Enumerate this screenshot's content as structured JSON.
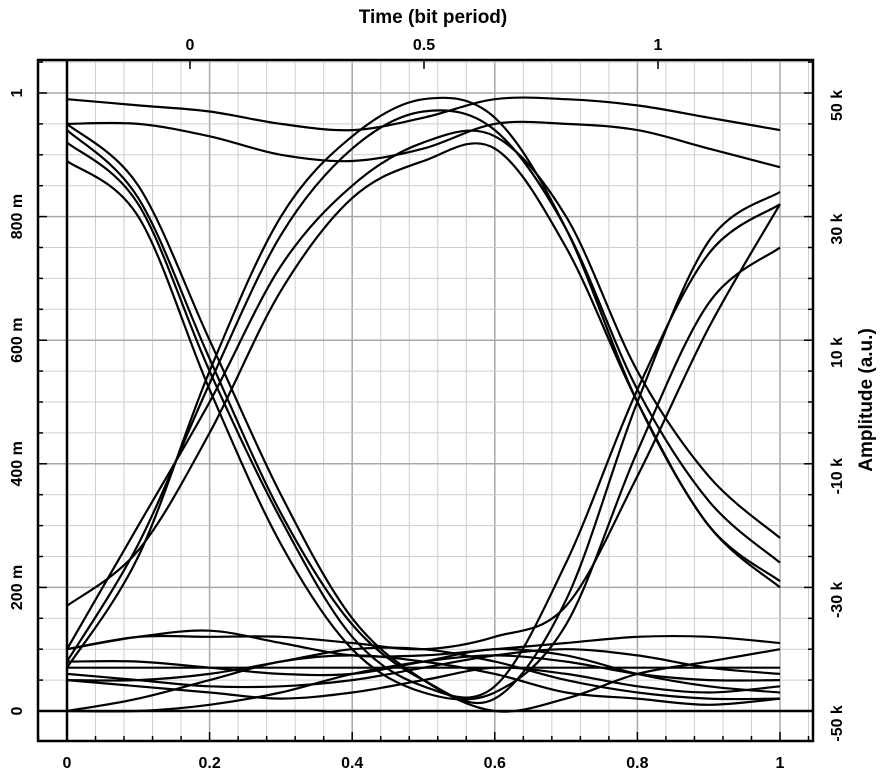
{
  "chart_data": {
    "type": "line",
    "title": "",
    "x_axis_bottom": {
      "range": [
        0,
        1
      ],
      "tick_labels": [
        "0",
        "0.2",
        "0.4",
        "0.6",
        "0.8",
        "1"
      ]
    },
    "x_axis_top": {
      "label": "Time (bit period)",
      "tick_labels": [
        "0",
        "0.5",
        "1"
      ]
    },
    "y_axis_left": {
      "range": [
        0,
        1
      ],
      "tick_labels": [
        "0",
        "200 m",
        "400 m",
        "600 m",
        "800 m",
        "1"
      ]
    },
    "y_axis_right": {
      "label": "Amplitude (a.u.)",
      "tick_labels": [
        "-50 k",
        "-30 k",
        "-10 k",
        "10 k",
        "30 k",
        "50 k"
      ]
    },
    "grid": true,
    "legend": "none",
    "line_color": "#000000",
    "series": [
      {
        "x": [
          0,
          0.1,
          0.2,
          0.3,
          0.4,
          0.5,
          0.6,
          0.7,
          0.8,
          0.9,
          1.0
        ],
        "y": [
          0.95,
          0.85,
          0.6,
          0.35,
          0.15,
          0.05,
          0.0,
          0.02,
          0.06,
          0.08,
          0.1
        ]
      },
      {
        "x": [
          0,
          0.1,
          0.2,
          0.3,
          0.4,
          0.5,
          0.6,
          0.7,
          0.8,
          0.9,
          1.0
        ],
        "y": [
          0.94,
          0.83,
          0.57,
          0.32,
          0.14,
          0.05,
          0.02,
          0.18,
          0.5,
          0.76,
          0.84
        ]
      },
      {
        "x": [
          0,
          0.1,
          0.2,
          0.3,
          0.4,
          0.5,
          0.6,
          0.7,
          0.8,
          0.9,
          1.0
        ],
        "y": [
          0.92,
          0.82,
          0.55,
          0.31,
          0.12,
          0.04,
          0.04,
          0.24,
          0.52,
          0.74,
          0.82
        ]
      },
      {
        "x": [
          0,
          0.1,
          0.2,
          0.3,
          0.4,
          0.5,
          0.6,
          0.7,
          0.8,
          0.9,
          1.0
        ],
        "y": [
          0.89,
          0.8,
          0.52,
          0.27,
          0.1,
          0.03,
          0.03,
          0.14,
          0.42,
          0.66,
          0.75
        ]
      },
      {
        "x": [
          0,
          0.1,
          0.2,
          0.3,
          0.4,
          0.5,
          0.6,
          0.7,
          0.8,
          0.9,
          1.0
        ],
        "y": [
          0.07,
          0.25,
          0.55,
          0.8,
          0.93,
          0.99,
          0.96,
          0.78,
          0.5,
          0.3,
          0.2
        ]
      },
      {
        "x": [
          0,
          0.1,
          0.2,
          0.3,
          0.4,
          0.5,
          0.6,
          0.7,
          0.8,
          0.9,
          1.0
        ],
        "y": [
          0.08,
          0.27,
          0.53,
          0.77,
          0.91,
          0.97,
          0.94,
          0.78,
          0.52,
          0.34,
          0.24
        ]
      },
      {
        "x": [
          0,
          0.1,
          0.2,
          0.3,
          0.4,
          0.5,
          0.6,
          0.7,
          0.8,
          0.9,
          1.0
        ],
        "y": [
          0.1,
          0.3,
          0.5,
          0.72,
          0.85,
          0.92,
          0.93,
          0.8,
          0.55,
          0.38,
          0.28
        ]
      },
      {
        "x": [
          0,
          0.1,
          0.2,
          0.3,
          0.4,
          0.5,
          0.6,
          0.7,
          0.8,
          0.9,
          1.0
        ],
        "y": [
          0.17,
          0.26,
          0.45,
          0.68,
          0.83,
          0.89,
          0.91,
          0.75,
          0.5,
          0.3,
          0.21
        ]
      },
      {
        "x": [
          0,
          0.1,
          0.2,
          0.3,
          0.4,
          0.5,
          0.6,
          0.7,
          0.8,
          0.9,
          1.0
        ],
        "y": [
          0.99,
          0.98,
          0.97,
          0.95,
          0.94,
          0.96,
          0.99,
          0.99,
          0.98,
          0.96,
          0.94
        ]
      },
      {
        "x": [
          0,
          0.1,
          0.2,
          0.3,
          0.4,
          0.5,
          0.6,
          0.7,
          0.8,
          0.9,
          1.0
        ],
        "y": [
          0.95,
          0.95,
          0.93,
          0.9,
          0.89,
          0.91,
          0.95,
          0.95,
          0.94,
          0.91,
          0.88
        ]
      },
      {
        "x": [
          0,
          0.1,
          0.2,
          0.3,
          0.4,
          0.5,
          0.6,
          0.7,
          0.8,
          0.9,
          1.0
        ],
        "y": [
          0.1,
          0.12,
          0.12,
          0.12,
          0.11,
          0.1,
          0.12,
          0.17,
          0.38,
          0.62,
          0.82
        ]
      },
      {
        "x": [
          0,
          0.1,
          0.2,
          0.3,
          0.4,
          0.5,
          0.6,
          0.7,
          0.8,
          0.9,
          1.0
        ],
        "y": [
          0.1,
          0.12,
          0.13,
          0.11,
          0.09,
          0.09,
          0.1,
          0.11,
          0.12,
          0.12,
          0.11
        ]
      },
      {
        "x": [
          0,
          0.1,
          0.2,
          0.3,
          0.4,
          0.5,
          0.6,
          0.7,
          0.8,
          0.9,
          1.0
        ],
        "y": [
          0.08,
          0.08,
          0.07,
          0.06,
          0.06,
          0.08,
          0.1,
          0.09,
          0.06,
          0.04,
          0.03
        ]
      },
      {
        "x": [
          0,
          0.1,
          0.2,
          0.3,
          0.4,
          0.5,
          0.6,
          0.7,
          0.8,
          0.9,
          1.0
        ],
        "y": [
          0.07,
          0.07,
          0.07,
          0.07,
          0.07,
          0.07,
          0.07,
          0.07,
          0.07,
          0.07,
          0.07
        ]
      },
      {
        "x": [
          0,
          0.1,
          0.2,
          0.3,
          0.4,
          0.5,
          0.6,
          0.7,
          0.8,
          0.9,
          1.0
        ],
        "y": [
          0.06,
          0.05,
          0.04,
          0.04,
          0.05,
          0.07,
          0.09,
          0.1,
          0.09,
          0.07,
          0.06
        ]
      },
      {
        "x": [
          0,
          0.1,
          0.2,
          0.3,
          0.4,
          0.5,
          0.6,
          0.7,
          0.8,
          0.9,
          1.0
        ],
        "y": [
          0.05,
          0.04,
          0.03,
          0.02,
          0.03,
          0.05,
          0.07,
          0.06,
          0.04,
          0.03,
          0.04
        ]
      },
      {
        "x": [
          0,
          0.1,
          0.2,
          0.3,
          0.4,
          0.5,
          0.6,
          0.7,
          0.8,
          0.9,
          1.0
        ],
        "y": [
          0.05,
          0.05,
          0.06,
          0.08,
          0.1,
          0.1,
          0.08,
          0.05,
          0.03,
          0.02,
          0.02
        ]
      },
      {
        "x": [
          0,
          0.1,
          0.2,
          0.3,
          0.4,
          0.5,
          0.6,
          0.7,
          0.8,
          0.9,
          1.0
        ],
        "y": [
          0.0,
          0.02,
          0.05,
          0.08,
          0.09,
          0.08,
          0.06,
          0.03,
          0.02,
          0.01,
          0.02
        ]
      },
      {
        "x": [
          0,
          0.1,
          0.2,
          0.3,
          0.4,
          0.5,
          0.6,
          0.7,
          0.8,
          0.9,
          1.0
        ],
        "y": [
          0.0,
          0.0,
          0.01,
          0.03,
          0.06,
          0.08,
          0.09,
          0.08,
          0.06,
          0.05,
          0.05
        ]
      }
    ]
  }
}
